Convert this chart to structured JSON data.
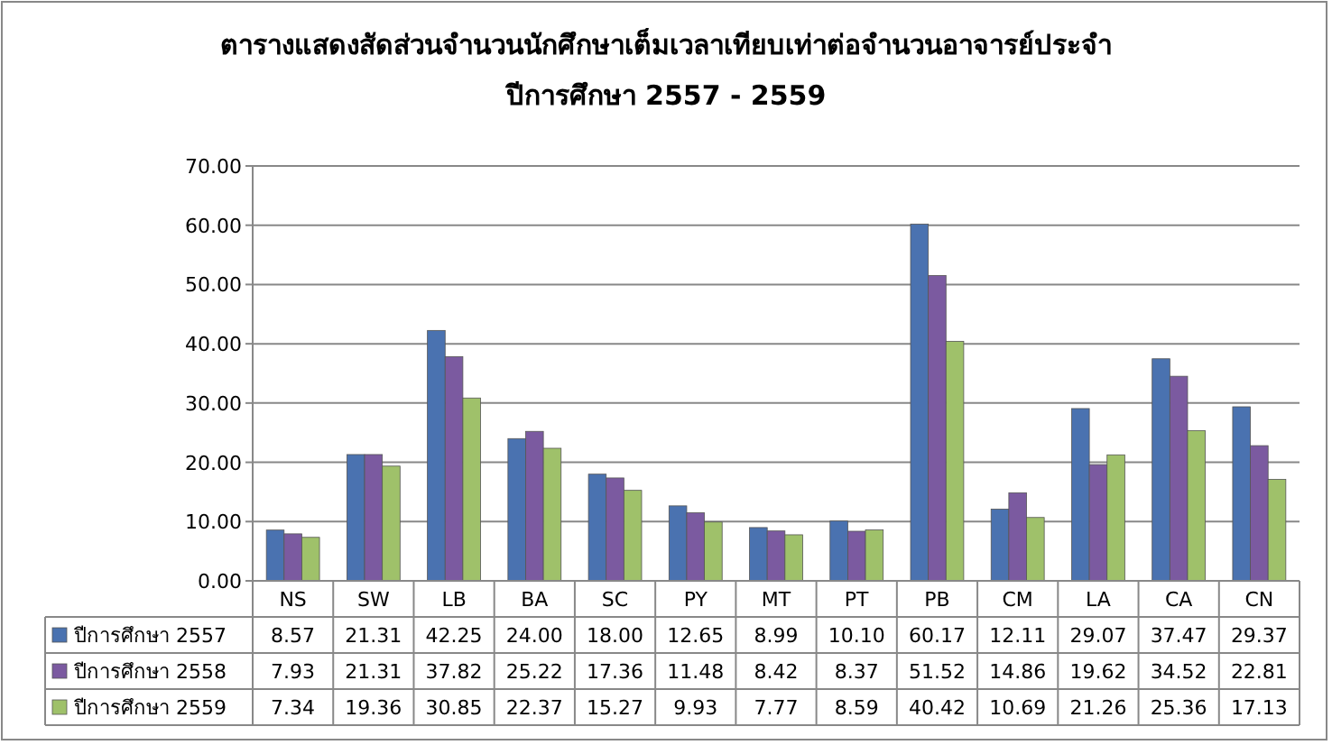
{
  "chart_data": {
    "type": "bar",
    "title": "ตารางแสดงสัดส่วนจำนวนนักศึกษาเต็มเวลาเทียบเท่าต่อจำนวนอาจารย์ประจำ ปีการศึกษา 2557 - 2559",
    "categories": [
      "NS",
      "SW",
      "LB",
      "BA",
      "SC",
      "PY",
      "MT",
      "PT",
      "PB",
      "CM",
      "LA",
      "CA",
      "CN"
    ],
    "series": [
      {
        "name": "ปีการศึกษา 2557",
        "color": "#4a72b0",
        "values": [
          8.57,
          21.31,
          42.25,
          24.0,
          18.0,
          12.65,
          8.99,
          10.1,
          60.17,
          12.11,
          29.07,
          37.47,
          29.37
        ],
        "value_labels": [
          "8.57",
          "21.31",
          "42.25",
          "24.00",
          "18.00",
          "12.65",
          "8.99",
          "10.10",
          "60.17",
          "12.11",
          "29.07",
          "37.47",
          "29.37"
        ]
      },
      {
        "name": "ปีการศึกษา 2558",
        "color": "#7b5aa0",
        "values": [
          7.93,
          21.31,
          37.82,
          25.22,
          17.36,
          11.48,
          8.42,
          8.37,
          51.52,
          14.86,
          19.62,
          34.52,
          22.81
        ],
        "value_labels": [
          "7.93",
          "21.31",
          "37.82",
          "25.22",
          "17.36",
          "11.48",
          "8.42",
          "8.37",
          "51.52",
          "14.86",
          "19.62",
          "34.52",
          "22.81"
        ]
      },
      {
        "name": "ปีการศึกษา 2559",
        "color": "#9fc16a",
        "values": [
          7.34,
          19.36,
          30.85,
          22.37,
          15.27,
          9.93,
          7.77,
          8.59,
          40.42,
          10.69,
          21.26,
          25.36,
          17.13
        ],
        "value_labels": [
          "7.34",
          "19.36",
          "30.85",
          "22.37",
          "15.27",
          "9.93",
          "7.77",
          "8.59",
          "40.42",
          "10.69",
          "21.26",
          "25.36",
          "17.13"
        ]
      }
    ],
    "ylim": [
      0,
      70
    ],
    "yticks": [
      {
        "value": 0,
        "label": "0.00"
      },
      {
        "value": 10,
        "label": "10.00"
      },
      {
        "value": 20,
        "label": "20.00"
      },
      {
        "value": 30,
        "label": "30.00"
      },
      {
        "value": 40,
        "label": "40.00"
      },
      {
        "value": 50,
        "label": "50.00"
      },
      {
        "value": 60,
        "label": "60.00"
      },
      {
        "value": 70,
        "label": "70.00"
      }
    ],
    "grid": "y",
    "legend": "bottom"
  }
}
